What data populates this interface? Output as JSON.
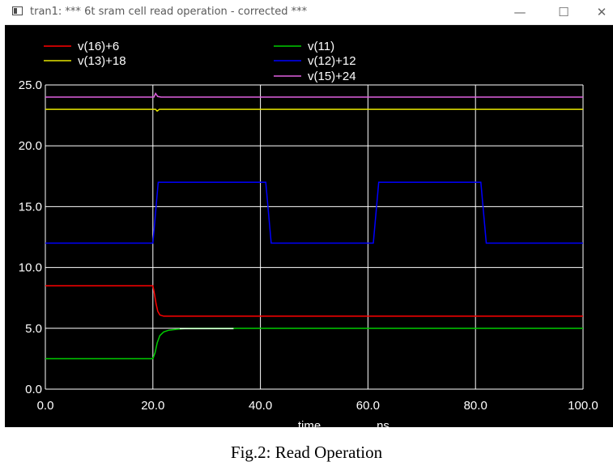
{
  "window": {
    "title": "tran1: *** 6t sram cell read operation - corrected ***",
    "controls": {
      "minimize": "—",
      "maximize": "☐",
      "close": "✕"
    }
  },
  "caption": "Fig.2: Read Operation",
  "chart_data": {
    "type": "line",
    "background": "#000000",
    "grid": true,
    "legend_placement": "top",
    "xlabel": "time",
    "xunit": "ns",
    "xlim": [
      0,
      100
    ],
    "ylim": [
      0,
      25
    ],
    "x_ticks": [
      "0.0",
      "20.0",
      "40.0",
      "60.0",
      "80.0",
      "100.0"
    ],
    "y_ticks": [
      "0.0",
      "5.0",
      "10.0",
      "15.0",
      "20.0",
      "25.0"
    ],
    "series": [
      {
        "name": "v(16)+6",
        "color": "#ff0000",
        "points": [
          [
            0,
            8.5
          ],
          [
            20,
            8.5
          ],
          [
            20.3,
            7.8
          ],
          [
            20.6,
            7.0
          ],
          [
            20.9,
            6.4
          ],
          [
            21.3,
            6.1
          ],
          [
            22,
            6.0
          ],
          [
            100,
            6.0
          ]
        ]
      },
      {
        "name": "v(13)+18",
        "color": "#e6e600",
        "points": [
          [
            0,
            23
          ],
          [
            20.5,
            23
          ],
          [
            20.8,
            22.85
          ],
          [
            21.2,
            23
          ],
          [
            100,
            23
          ]
        ]
      },
      {
        "name": "v(11)",
        "color": "#00cc00",
        "points": [
          [
            0,
            2.5
          ],
          [
            20,
            2.5
          ],
          [
            20.4,
            3.0
          ],
          [
            20.8,
            3.8
          ],
          [
            21.3,
            4.4
          ],
          [
            22,
            4.7
          ],
          [
            23,
            4.85
          ],
          [
            25,
            4.95
          ],
          [
            27,
            5.0
          ],
          [
            100,
            5.0
          ]
        ]
      },
      {
        "name": "v(12)+12",
        "color": "#0000ff",
        "points": [
          [
            0,
            12
          ],
          [
            20,
            12
          ],
          [
            21,
            17
          ],
          [
            41,
            17
          ],
          [
            42,
            12
          ],
          [
            61,
            12
          ],
          [
            62,
            17
          ],
          [
            81,
            17
          ],
          [
            82,
            12
          ],
          [
            100,
            12
          ]
        ]
      },
      {
        "name": "v(15)+24",
        "color": "#e060e0",
        "points": [
          [
            0,
            24
          ],
          [
            20.2,
            24
          ],
          [
            20.5,
            24.3
          ],
          [
            20.9,
            24.05
          ],
          [
            21.5,
            24
          ],
          [
            100,
            24
          ]
        ]
      }
    ]
  }
}
